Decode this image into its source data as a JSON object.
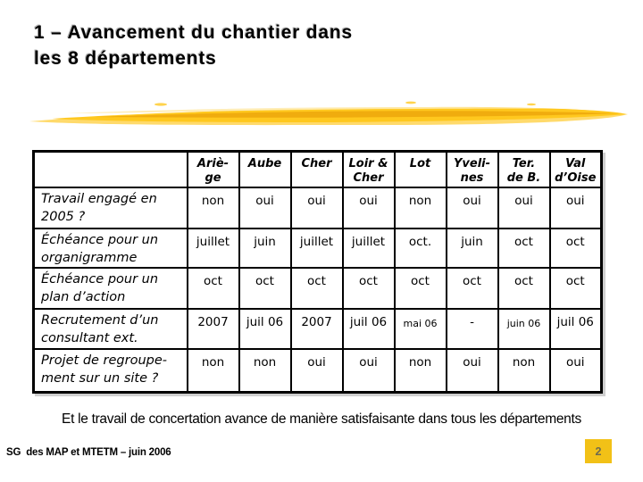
{
  "slide": {
    "title": "1 – Avancement du chantier dans\nles 8 départements",
    "closing_note": "Et le travail de concertation avance de manière satisfaisante dans tous les départements",
    "footer": "SG  des MAP et MTETM – juin 2006",
    "page_number": "2"
  },
  "table": {
    "corner_label": "",
    "columns": [
      "Ariè-\nge",
      "Aube",
      "Cher",
      "Loir &\nCher",
      "Lot",
      "Yveli-\nnes",
      "Ter.\nde B.",
      "Val\nd’Oise"
    ],
    "rows": [
      {
        "label": "Travail engagé en\n2005 ?",
        "values": [
          "non",
          "oui",
          "oui",
          "oui",
          "non",
          "oui",
          "oui",
          "oui"
        ]
      },
      {
        "label": "Échéance pour un\norganigramme",
        "values": [
          "juillet",
          "juin",
          "juillet",
          "juillet",
          "oct.",
          "juin",
          "oct",
          "oct"
        ]
      },
      {
        "label": "Échéance pour un\nplan d’action",
        "values": [
          "oct",
          "oct",
          "oct",
          "oct",
          "oct",
          "oct",
          "oct",
          "oct"
        ]
      },
      {
        "label": "Recrutement d’un\nconsultant ext.",
        "values": [
          "2007",
          "juil 06",
          "2007",
          "juil 06",
          "mai 06",
          "-",
          "juin 06",
          "juil 06"
        ],
        "small_value_indices": [
          4,
          6
        ]
      },
      {
        "label": "Projet de regroupe-\nment sur un site ?",
        "values": [
          "non",
          "non",
          "oui",
          "oui",
          "non",
          "oui",
          "non",
          "oui"
        ]
      }
    ]
  },
  "colors": {
    "accent_gold": "#F2C117",
    "page_number_text": "#6E6B50",
    "table_border": "#000000"
  }
}
